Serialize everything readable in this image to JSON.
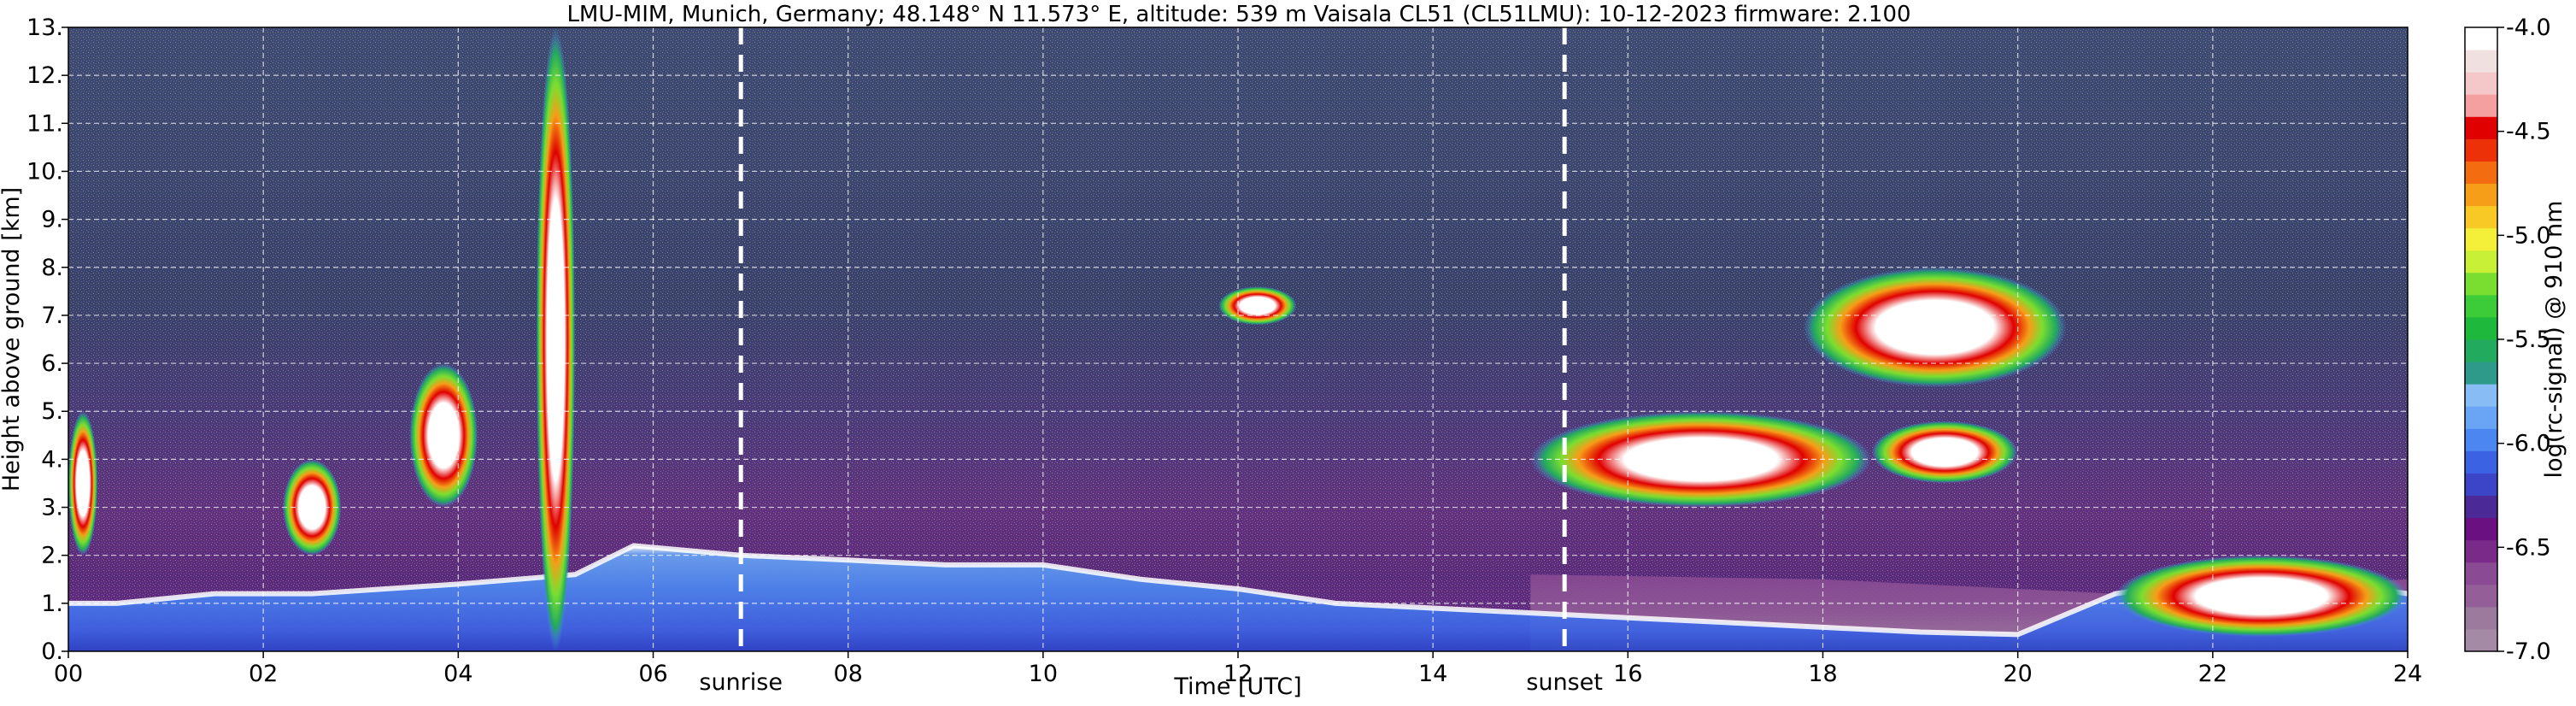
{
  "chart_data": {
    "type": "heatmap",
    "title": "LMU-MIM, Munich, Germany; 48.148° N 11.573° E, altitude: 539 m    Vaisala CL51 (CL51LMU): 10-12-2023    firmware: 2.100",
    "xlabel": "Time [UTC]",
    "ylabel": "Height above ground [km]",
    "xlim": [
      0,
      24
    ],
    "ylim": [
      0,
      13
    ],
    "x_ticks": [
      0,
      2,
      4,
      6,
      8,
      10,
      12,
      14,
      16,
      18,
      20,
      22,
      24
    ],
    "x_tick_labels": [
      "00",
      "02",
      "04",
      "06",
      "08",
      "10",
      "12",
      "14",
      "16",
      "18",
      "20",
      "22",
      "24"
    ],
    "y_ticks": [
      0,
      1,
      2,
      3,
      4,
      5,
      6,
      7,
      8,
      9,
      10,
      11,
      12,
      13
    ],
    "y_tick_labels": [
      "0.",
      "1.",
      "2.",
      "3.",
      "4.",
      "5.",
      "6.",
      "7.",
      "8.",
      "9.",
      "10.",
      "11.",
      "12.",
      "13."
    ],
    "grid": true,
    "annotations": [
      {
        "label": "sunrise",
        "x": 6.9
      },
      {
        "label": "sunset",
        "x": 15.35
      }
    ],
    "colorbar": {
      "label": "log(rc-signal) @ 910 nm",
      "range": [
        -7.0,
        -4.0
      ],
      "ticks": [
        -4.0,
        -4.5,
        -5.0,
        -5.5,
        -6.0,
        -6.5,
        -7.0
      ],
      "tick_labels": [
        "-4.0",
        "-4.5",
        "-5.0",
        "-5.5",
        "-6.0",
        "-6.5",
        "-7.0"
      ],
      "colors": [
        "#a58aa5",
        "#9c7a9e",
        "#945f98",
        "#8a4a94",
        "#7a2a88",
        "#6a1080",
        "#4b2a98",
        "#3c44c8",
        "#3c62e4",
        "#4c86f0",
        "#6aa4f4",
        "#88bcf4",
        "#2e9a8a",
        "#22aa5e",
        "#1eb83c",
        "#3ccc3a",
        "#7ade30",
        "#c8f036",
        "#f4f03a",
        "#f8c824",
        "#f69e18",
        "#f46c10",
        "#ec3008",
        "#e00000",
        "#f4a0a0",
        "#f4c8c8",
        "#f0e0e0",
        "#ffffff"
      ]
    },
    "features": {
      "boundary_layer_top": [
        [
          0,
          1.0
        ],
        [
          0.5,
          1.0
        ],
        [
          1.5,
          1.2
        ],
        [
          2.5,
          1.2
        ],
        [
          4.0,
          1.4
        ],
        [
          5.2,
          1.6
        ],
        [
          5.8,
          2.2
        ],
        [
          6.9,
          2.0
        ],
        [
          8.0,
          1.9
        ],
        [
          9.0,
          1.8
        ],
        [
          10.0,
          1.8
        ],
        [
          11.0,
          1.5
        ],
        [
          12.0,
          1.3
        ],
        [
          13.0,
          1.0
        ],
        [
          14.0,
          0.9
        ],
        [
          15.0,
          0.8
        ],
        [
          16.0,
          0.7
        ],
        [
          17.0,
          0.6
        ],
        [
          18.0,
          0.5
        ],
        [
          19.0,
          0.4
        ],
        [
          20.0,
          0.35
        ],
        [
          21.0,
          1.2
        ],
        [
          22.0,
          1.5
        ],
        [
          23.0,
          1.5
        ],
        [
          24.0,
          1.2
        ]
      ],
      "cloud_layers": [
        {
          "x": [
            0,
            0.3
          ],
          "y": [
            2.0,
            5.0
          ]
        },
        {
          "x": [
            2.2,
            2.8
          ],
          "y": [
            2.0,
            4.0
          ]
        },
        {
          "x": [
            3.5,
            4.2
          ],
          "y": [
            3.0,
            6.0
          ]
        },
        {
          "x": [
            4.8,
            5.2
          ],
          "y": [
            0,
            13.0
          ]
        },
        {
          "x": [
            11.8,
            12.6
          ],
          "y": [
            6.8,
            7.6
          ]
        },
        {
          "x": [
            15.0,
            18.5
          ],
          "y": [
            3.0,
            5.0
          ]
        },
        {
          "x": [
            17.8,
            20.5
          ],
          "y": [
            5.5,
            8.0
          ]
        },
        {
          "x": [
            18.5,
            20.0
          ],
          "y": [
            3.5,
            4.8
          ]
        },
        {
          "x": [
            21.0,
            24.0
          ],
          "y": [
            0.3,
            2.0
          ]
        }
      ]
    }
  }
}
